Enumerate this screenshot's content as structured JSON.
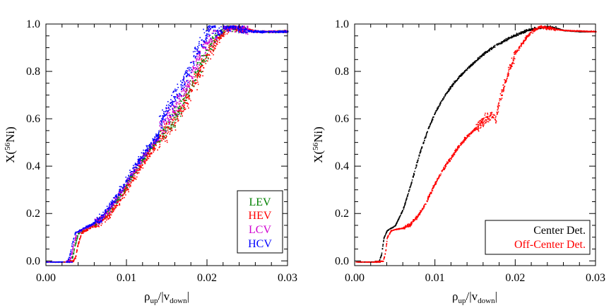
{
  "chart_data": [
    {
      "type": "scatter",
      "xlabel": {
        "base": "ρ",
        "sub1": "up",
        "mid": "/|v",
        "sub2": "down",
        "end": "|"
      },
      "ylabel": {
        "pre": "X(",
        "sup": "56",
        "post": "Ni)"
      },
      "xlim": [
        0.0,
        0.03
      ],
      "ylim": [
        0.0,
        1.0
      ],
      "xticks": [
        "0.00",
        "0.01",
        "0.02",
        "0.03"
      ],
      "yticks": [
        "0.0",
        "0.2",
        "0.4",
        "0.6",
        "0.8",
        "1.0"
      ],
      "grid": false,
      "legend_placement": "bottom-right",
      "series": [
        {
          "name": "LEV",
          "color": "#008000",
          "x_shift": 0.0,
          "scatter": 0.025,
          "hump": 0.0
        },
        {
          "name": "HEV",
          "color": "#ff0000",
          "x_shift": 0.00035,
          "scatter": 0.03,
          "hump": 0.01
        },
        {
          "name": "LCV",
          "color": "#d000d0",
          "x_shift": -0.0002,
          "scatter": 0.028,
          "hump": 0.03
        },
        {
          "name": "HCV",
          "color": "#0000ff",
          "x_shift": -0.0004,
          "scatter": 0.03,
          "hump": 0.06
        }
      ],
      "curve": {
        "x": [
          0.0,
          0.003,
          0.0033,
          0.0035,
          0.004,
          0.005,
          0.006,
          0.007,
          0.008,
          0.009,
          0.01,
          0.011,
          0.012,
          0.013,
          0.014,
          0.015,
          0.016,
          0.017,
          0.018,
          0.019,
          0.02,
          0.021,
          0.022,
          0.0225,
          0.023,
          0.0245,
          0.026,
          0.03
        ],
        "y": [
          0.0,
          0.0,
          0.02,
          0.06,
          0.12,
          0.14,
          0.155,
          0.18,
          0.22,
          0.27,
          0.32,
          0.38,
          0.43,
          0.48,
          0.52,
          0.56,
          0.61,
          0.67,
          0.74,
          0.82,
          0.88,
          0.94,
          0.975,
          0.99,
          0.99,
          0.98,
          0.97,
          0.97
        ]
      }
    },
    {
      "type": "scatter",
      "xlabel": {
        "base": "ρ",
        "sub1": "up",
        "mid": "/|v",
        "sub2": "down",
        "end": "|"
      },
      "ylabel": {
        "pre": "X(",
        "sup": "56",
        "post": "Ni)"
      },
      "xlim": [
        0.0,
        0.03
      ],
      "ylim": [
        0.0,
        1.0
      ],
      "xticks": [
        "0.00",
        "0.01",
        "0.02",
        "0.03"
      ],
      "yticks": [
        "0.0",
        "0.2",
        "0.4",
        "0.6",
        "0.8",
        "1.0"
      ],
      "grid": false,
      "legend_placement": "bottom-right",
      "series": [
        {
          "name": "Center Det.",
          "color": "#000000",
          "scatter": 0.008,
          "x": [
            0.0,
            0.003,
            0.0033,
            0.0036,
            0.004,
            0.005,
            0.006,
            0.007,
            0.008,
            0.009,
            0.01,
            0.011,
            0.012,
            0.013,
            0.014,
            0.015,
            0.016,
            0.017,
            0.018,
            0.019,
            0.02,
            0.021,
            0.022,
            0.023,
            0.024,
            0.025,
            0.026,
            0.028,
            0.03
          ],
          "y": [
            0.0,
            0.0,
            0.03,
            0.1,
            0.13,
            0.15,
            0.22,
            0.33,
            0.45,
            0.55,
            0.63,
            0.69,
            0.74,
            0.78,
            0.815,
            0.845,
            0.875,
            0.9,
            0.92,
            0.94,
            0.955,
            0.97,
            0.98,
            0.985,
            0.99,
            0.985,
            0.975,
            0.97,
            0.97
          ]
        },
        {
          "name": "Off-Center Det.",
          "color": "#ff0000",
          "scatter": 0.012,
          "x": [
            0.0,
            0.0035,
            0.0038,
            0.004,
            0.0045,
            0.005,
            0.006,
            0.007,
            0.008,
            0.009,
            0.01,
            0.011,
            0.012,
            0.013,
            0.014,
            0.015,
            0.016,
            0.017,
            0.0175,
            0.018,
            0.019,
            0.02,
            0.021,
            0.022,
            0.023,
            0.024,
            0.026,
            0.03
          ],
          "y": [
            0.0,
            0.0,
            0.04,
            0.1,
            0.13,
            0.135,
            0.14,
            0.16,
            0.2,
            0.26,
            0.33,
            0.39,
            0.44,
            0.49,
            0.53,
            0.56,
            0.59,
            0.62,
            0.6,
            0.68,
            0.79,
            0.88,
            0.93,
            0.97,
            0.99,
            0.985,
            0.975,
            0.97
          ]
        }
      ]
    }
  ]
}
